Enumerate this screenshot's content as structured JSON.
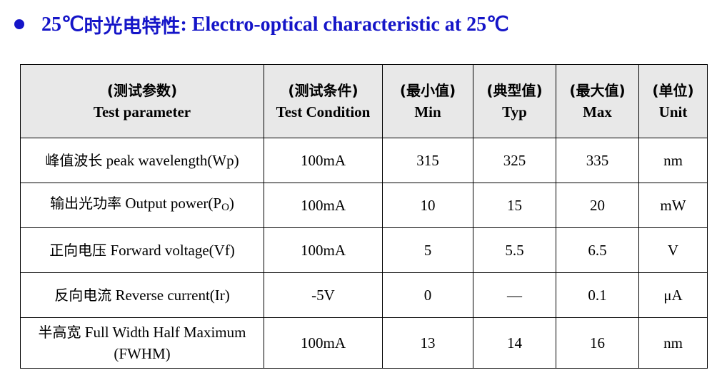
{
  "heading": {
    "temp": "25℃",
    "cn": "时光电特性",
    "en": ": Electro-optical characteristic at 25℃"
  },
  "table": {
    "headers": [
      {
        "cn": "(测试参数)",
        "en": "Test parameter"
      },
      {
        "cn": "(测试条件)",
        "en": "Test Condition"
      },
      {
        "cn": "(最小值)",
        "en": "Min"
      },
      {
        "cn": "(典型值)",
        "en": "Typ"
      },
      {
        "cn": "(最大值)",
        "en": "Max"
      },
      {
        "cn": "(单位)",
        "en": "Unit"
      }
    ],
    "rows": [
      {
        "param_cn": "峰值波长",
        "param_en": "peak wavelength(Wp)",
        "condition": "100mA",
        "min": "315",
        "typ": "325",
        "max": "335",
        "unit": "nm"
      },
      {
        "param_cn": "输出光功率",
        "param_en": "Output power(P",
        "param_sub": "O",
        "param_tail": ")",
        "condition": "100mA",
        "min": "10",
        "typ": "15",
        "max": "20",
        "unit": "mW"
      },
      {
        "param_cn": "正向电压",
        "param_en": "Forward voltage(Vf)",
        "condition": "100mA",
        "min": "5",
        "typ": "5.5",
        "max": "6.5",
        "unit": "V"
      },
      {
        "param_cn": "反向电流",
        "param_en": "Reverse current(Ir)",
        "condition": "-5V",
        "min": "0",
        "typ": "—",
        "max": "0.1",
        "unit": "μA"
      },
      {
        "param_cn": "半高宽",
        "param_en": "Full Width Half Maximum",
        "param_en2": "(FWHM)",
        "condition": "100mA",
        "min": "13",
        "typ": "14",
        "max": "16",
        "unit": "nm"
      }
    ]
  }
}
